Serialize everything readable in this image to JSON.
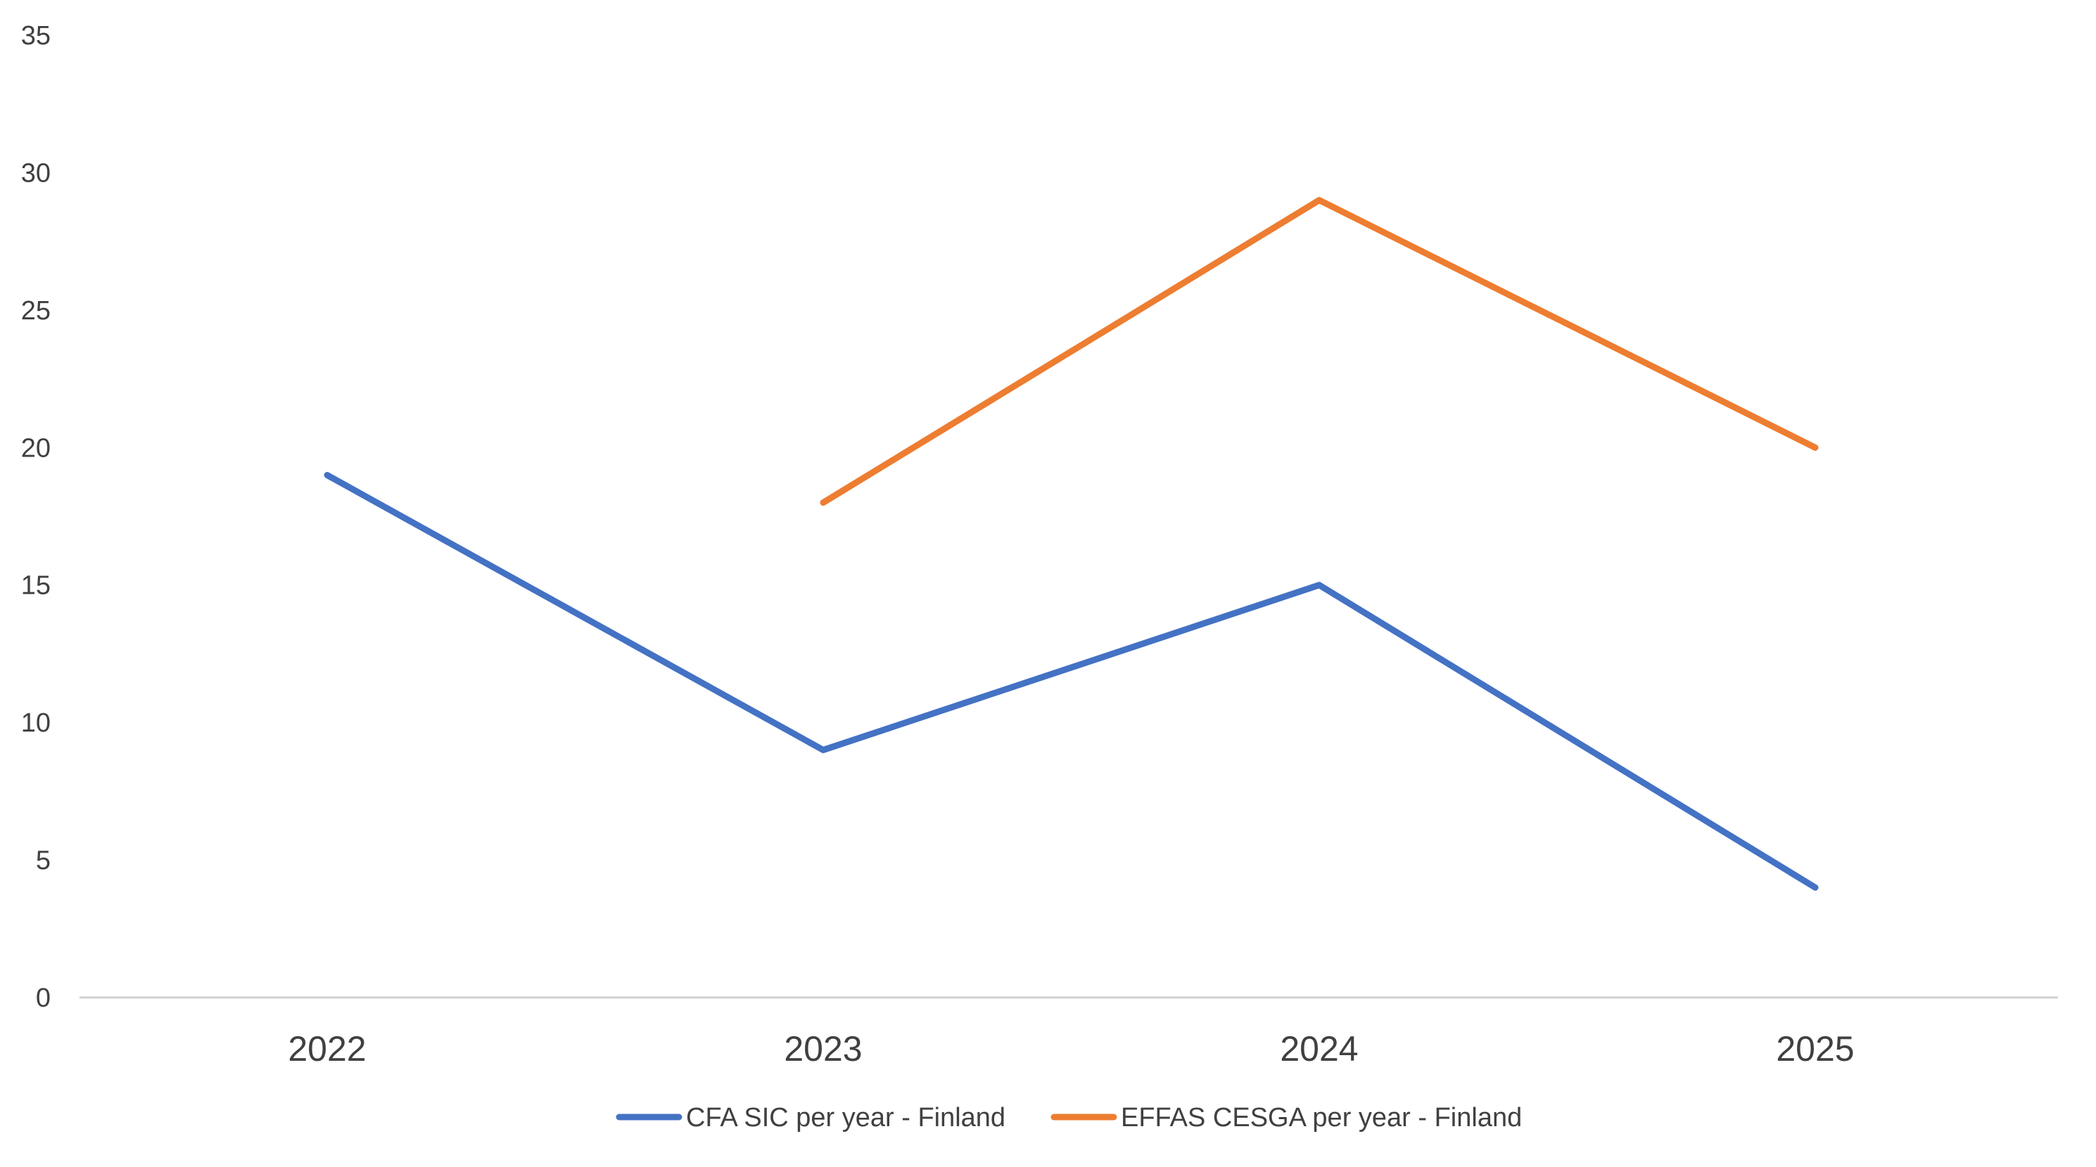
{
  "chart_data": {
    "type": "line",
    "title": "",
    "xlabel": "",
    "ylabel": "",
    "categories": [
      "2022",
      "2023",
      "2024",
      "2025"
    ],
    "ylim": [
      0,
      35
    ],
    "yticks": [
      0,
      5,
      10,
      15,
      20,
      25,
      30,
      35
    ],
    "grid": false,
    "legend_position": "bottom",
    "series": [
      {
        "name": "CFA SIC per year - Finland",
        "color": "#4472C4",
        "values": [
          19,
          9,
          15,
          4
        ]
      },
      {
        "name": "EFFAS CESGA per year - Finland",
        "color": "#ED7D31",
        "values": [
          null,
          18,
          29,
          20
        ]
      }
    ]
  }
}
